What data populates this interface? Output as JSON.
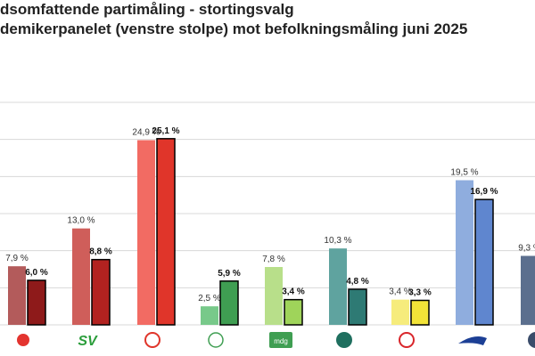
{
  "title_line1": "dsomfattende partimåling - stortingsvalg",
  "title_line2": "demikerpanelet (venstre stolpe) mot befolkningsmåling juni 2025",
  "colors": {
    "gridline": "#d8d8d8"
  },
  "chart_data": {
    "type": "bar",
    "title": "dsomfattende partimåling - stortingsvalg demikerpanelet (venstre stolpe) mot befolkningsmåling juni 2025",
    "ylim": [
      0,
      30
    ],
    "grid": true,
    "categories": [
      "R",
      "SV",
      "Ap",
      "Sp",
      "MDG",
      "V",
      "KrF",
      "H",
      "Frp"
    ],
    "series": [
      {
        "name": "",
        "values": [
          7.9,
          13.0,
          24.9,
          2.5,
          7.8,
          10.3,
          3.4,
          19.5,
          9.3
        ]
      },
      {
        "name": "",
        "values": [
          6.0,
          8.8,
          25.1,
          5.9,
          3.4,
          4.8,
          3.3,
          16.9,
          null
        ]
      }
    ],
    "value_labels": [
      [
        "7,9 %",
        "13,0 %",
        "24,9 %",
        "2,5 %",
        "7,8 %",
        "10,3 %",
        "3,4 %",
        "19,5 %",
        "9,3 %"
      ],
      [
        "6,0 %",
        "8,8 %",
        "25,1 %",
        "5,9 %",
        "3,4 %",
        "4,8 %",
        "3,3 %",
        "16,9 %",
        ""
      ]
    ],
    "logos": [
      "R",
      "SV",
      "Ap",
      "Sp",
      "mdg",
      "V",
      "KrF",
      "H",
      "Frp"
    ],
    "colors_left": [
      "#b35b5b",
      "#cf5e5a",
      "#f26b63",
      "#78c98a",
      "#b8df8a",
      "#5fa39f",
      "#f6ec7c",
      "#8fadde",
      "#5b6f8e"
    ],
    "colors_right": [
      "#8e1a1a",
      "#b22220",
      "#e0352a",
      "#3f9e52",
      "#9fd45a",
      "#2e7a74",
      "#f2e338",
      "#5f86cf",
      "#3a4c6a"
    ]
  }
}
